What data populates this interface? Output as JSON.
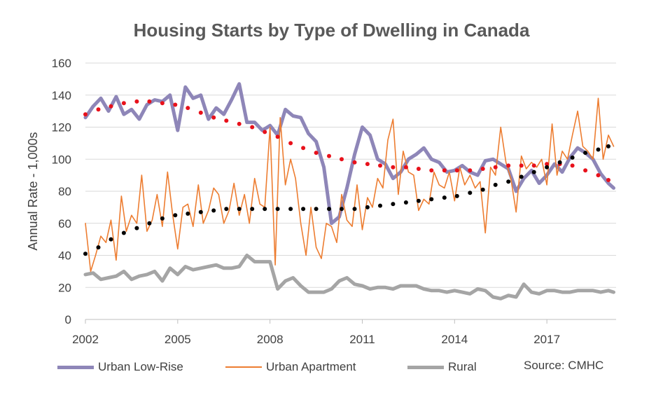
{
  "title": "Housing Starts by Type of Dwelling in Canada",
  "source_note": "Source: CMHC",
  "chart_data": {
    "type": "line",
    "title": "Housing Starts by Type of Dwelling in Canada",
    "xlabel": "",
    "ylabel": "Annual Rate - 1,000s",
    "xlim": [
      2002,
      2019.25
    ],
    "ylim": [
      0,
      160
    ],
    "x_ticks": [
      2002,
      2005,
      2008,
      2011,
      2014,
      2017
    ],
    "y_ticks": [
      0,
      20,
      40,
      60,
      80,
      100,
      120,
      140,
      160
    ],
    "grid": "horizontal",
    "legend_position": "bottom",
    "series": [
      {
        "name": "Urban Low-Rise",
        "color": "#8e86b8",
        "style": "thick-line",
        "x": [
          2002.0,
          2002.25,
          2002.5,
          2002.75,
          2003.0,
          2003.25,
          2003.5,
          2003.75,
          2004.0,
          2004.25,
          2004.5,
          2004.75,
          2005.0,
          2005.25,
          2005.5,
          2005.75,
          2006.0,
          2006.25,
          2006.5,
          2006.75,
          2007.0,
          2007.25,
          2007.5,
          2007.75,
          2008.0,
          2008.25,
          2008.5,
          2008.75,
          2009.0,
          2009.25,
          2009.5,
          2009.75,
          2010.0,
          2010.25,
          2010.5,
          2010.75,
          2011.0,
          2011.25,
          2011.5,
          2011.75,
          2012.0,
          2012.25,
          2012.5,
          2012.75,
          2013.0,
          2013.25,
          2013.5,
          2013.75,
          2014.0,
          2014.25,
          2014.5,
          2014.75,
          2015.0,
          2015.25,
          2015.5,
          2015.75,
          2016.0,
          2016.25,
          2016.5,
          2016.75,
          2017.0,
          2017.25,
          2017.5,
          2017.75,
          2018.0,
          2018.25,
          2018.5,
          2018.75,
          2019.0,
          2019.17
        ],
        "values": [
          126,
          133,
          138,
          130,
          139,
          128,
          131,
          125,
          134,
          137,
          136,
          140,
          118,
          145,
          138,
          140,
          125,
          132,
          128,
          137,
          147,
          123,
          123,
          118,
          121,
          115,
          131,
          127,
          126,
          116,
          111,
          95,
          60,
          64,
          82,
          103,
          120,
          115,
          100,
          97,
          88,
          92,
          100,
          103,
          107,
          100,
          98,
          92,
          93,
          96,
          92,
          90,
          99,
          100,
          97,
          94,
          80,
          88,
          93,
          85,
          90,
          97,
          92,
          101,
          107,
          104,
          100,
          91,
          85,
          82
        ]
      },
      {
        "name": "Urban Apartment",
        "color": "#ed7d31",
        "style": "thin-line",
        "x": [
          2002.0,
          2002.17,
          2002.33,
          2002.5,
          2002.67,
          2002.83,
          2003.0,
          2003.17,
          2003.33,
          2003.5,
          2003.67,
          2003.83,
          2004.0,
          2004.17,
          2004.33,
          2004.5,
          2004.67,
          2004.83,
          2005.0,
          2005.17,
          2005.33,
          2005.5,
          2005.67,
          2005.83,
          2006.0,
          2006.17,
          2006.33,
          2006.5,
          2006.67,
          2006.83,
          2007.0,
          2007.17,
          2007.33,
          2007.5,
          2007.67,
          2007.83,
          2008.0,
          2008.17,
          2008.33,
          2008.5,
          2008.67,
          2008.83,
          2009.0,
          2009.17,
          2009.33,
          2009.5,
          2009.67,
          2009.83,
          2010.0,
          2010.17,
          2010.33,
          2010.5,
          2010.67,
          2010.83,
          2011.0,
          2011.17,
          2011.33,
          2011.5,
          2011.67,
          2011.83,
          2012.0,
          2012.17,
          2012.33,
          2012.5,
          2012.67,
          2012.83,
          2013.0,
          2013.17,
          2013.33,
          2013.5,
          2013.67,
          2013.83,
          2014.0,
          2014.17,
          2014.33,
          2014.5,
          2014.67,
          2014.83,
          2015.0,
          2015.17,
          2015.33,
          2015.5,
          2015.67,
          2015.83,
          2016.0,
          2016.17,
          2016.33,
          2016.5,
          2016.67,
          2016.83,
          2017.0,
          2017.17,
          2017.33,
          2017.5,
          2017.67,
          2017.83,
          2018.0,
          2018.17,
          2018.33,
          2018.5,
          2018.67,
          2018.83,
          2019.0,
          2019.17
        ],
        "values": [
          60,
          30,
          40,
          52,
          48,
          62,
          37,
          77,
          55,
          65,
          60,
          90,
          55,
          62,
          78,
          58,
          92,
          66,
          44,
          70,
          72,
          58,
          84,
          60,
          68,
          82,
          78,
          60,
          68,
          85,
          65,
          78,
          60,
          88,
          72,
          70,
          120,
          34,
          126,
          84,
          100,
          88,
          60,
          40,
          70,
          45,
          38,
          60,
          58,
          48,
          78,
          62,
          58,
          84,
          56,
          76,
          70,
          88,
          82,
          112,
          125,
          78,
          105,
          92,
          90,
          68,
          75,
          72,
          92,
          84,
          82,
          92,
          74,
          95,
          84,
          90,
          82,
          86,
          54,
          95,
          90,
          120,
          98,
          88,
          67,
          102,
          94,
          98,
          95,
          100,
          84,
          122,
          90,
          105,
          100,
          115,
          130,
          108,
          105,
          100,
          138,
          100,
          115,
          108
        ]
      },
      {
        "name": "Rural",
        "color": "#a5a5a5",
        "style": "thick-line",
        "x": [
          2002.0,
          2002.25,
          2002.5,
          2002.75,
          2003.0,
          2003.25,
          2003.5,
          2003.75,
          2004.0,
          2004.25,
          2004.5,
          2004.75,
          2005.0,
          2005.25,
          2005.5,
          2005.75,
          2006.0,
          2006.25,
          2006.5,
          2006.75,
          2007.0,
          2007.25,
          2007.5,
          2007.75,
          2008.0,
          2008.25,
          2008.5,
          2008.75,
          2009.0,
          2009.25,
          2009.5,
          2009.75,
          2010.0,
          2010.25,
          2010.5,
          2010.75,
          2011.0,
          2011.25,
          2011.5,
          2011.75,
          2012.0,
          2012.25,
          2012.5,
          2012.75,
          2013.0,
          2013.25,
          2013.5,
          2013.75,
          2014.0,
          2014.25,
          2014.5,
          2014.75,
          2015.0,
          2015.25,
          2015.5,
          2015.75,
          2016.0,
          2016.25,
          2016.5,
          2016.75,
          2017.0,
          2017.25,
          2017.5,
          2017.75,
          2018.0,
          2018.25,
          2018.5,
          2018.75,
          2019.0,
          2019.17
        ],
        "values": [
          28,
          29,
          25,
          26,
          27,
          30,
          25,
          27,
          28,
          30,
          24,
          32,
          28,
          33,
          31,
          32,
          33,
          34,
          32,
          32,
          33,
          40,
          36,
          36,
          36,
          19,
          24,
          26,
          21,
          17,
          17,
          17,
          19,
          24,
          26,
          22,
          21,
          19,
          20,
          20,
          19,
          21,
          21,
          21,
          19,
          18,
          18,
          17,
          18,
          17,
          16,
          19,
          18,
          14,
          13,
          15,
          14,
          22,
          17,
          16,
          18,
          18,
          17,
          17,
          18,
          18,
          18,
          17,
          18,
          17
        ]
      },
      {
        "name": "",
        "color": "#e8111b",
        "style": "dotted-trend",
        "x": [
          2002.0,
          2002.42,
          2002.83,
          2003.25,
          2003.67,
          2004.08,
          2004.5,
          2004.92,
          2005.33,
          2005.75,
          2006.17,
          2006.58,
          2007.0,
          2007.42,
          2007.83,
          2008.25,
          2008.67,
          2009.08,
          2009.5,
          2009.92,
          2010.33,
          2010.75,
          2011.17,
          2011.58,
          2012.0,
          2012.42,
          2012.83,
          2013.25,
          2013.67,
          2014.08,
          2014.5,
          2014.92,
          2015.33,
          2015.75,
          2016.17,
          2016.58,
          2017.0,
          2017.42,
          2017.83,
          2018.25,
          2018.67,
          2019.0
        ],
        "values": [
          128,
          131,
          133,
          135,
          136,
          136,
          135,
          134,
          132,
          129,
          126,
          124,
          122,
          120,
          117,
          114,
          110,
          107,
          104,
          102,
          100,
          98,
          97,
          96,
          95,
          95,
          94,
          93,
          93,
          93,
          93,
          94,
          95,
          96,
          96,
          96,
          97,
          97,
          96,
          93,
          90,
          87
        ]
      },
      {
        "name": "",
        "color": "#000000",
        "style": "dotted-trend",
        "x": [
          2002.0,
          2002.42,
          2002.83,
          2003.25,
          2003.67,
          2004.08,
          2004.5,
          2004.92,
          2005.33,
          2005.75,
          2006.17,
          2006.58,
          2007.0,
          2007.42,
          2007.83,
          2008.25,
          2008.67,
          2009.08,
          2009.5,
          2009.92,
          2010.33,
          2010.75,
          2011.17,
          2011.58,
          2012.0,
          2012.42,
          2012.83,
          2013.25,
          2013.67,
          2014.08,
          2014.5,
          2014.92,
          2015.33,
          2015.75,
          2016.17,
          2016.58,
          2017.0,
          2017.42,
          2017.83,
          2018.25,
          2018.67,
          2019.0
        ],
        "values": [
          41,
          45,
          50,
          54,
          57,
          60,
          63,
          65,
          66,
          67,
          68,
          69,
          69,
          69,
          69,
          69,
          69,
          69,
          69,
          69,
          69,
          69,
          70,
          71,
          72,
          73,
          74,
          75,
          76,
          77,
          79,
          81,
          84,
          86,
          89,
          92,
          95,
          98,
          101,
          104,
          106,
          108
        ]
      }
    ]
  },
  "legend": {
    "items": [
      {
        "label": "Urban Low-Rise",
        "color": "#8e86b8"
      },
      {
        "label": "Urban Apartment",
        "color": "#ed7d31"
      },
      {
        "label": "Rural",
        "color": "#a5a5a5"
      }
    ]
  }
}
